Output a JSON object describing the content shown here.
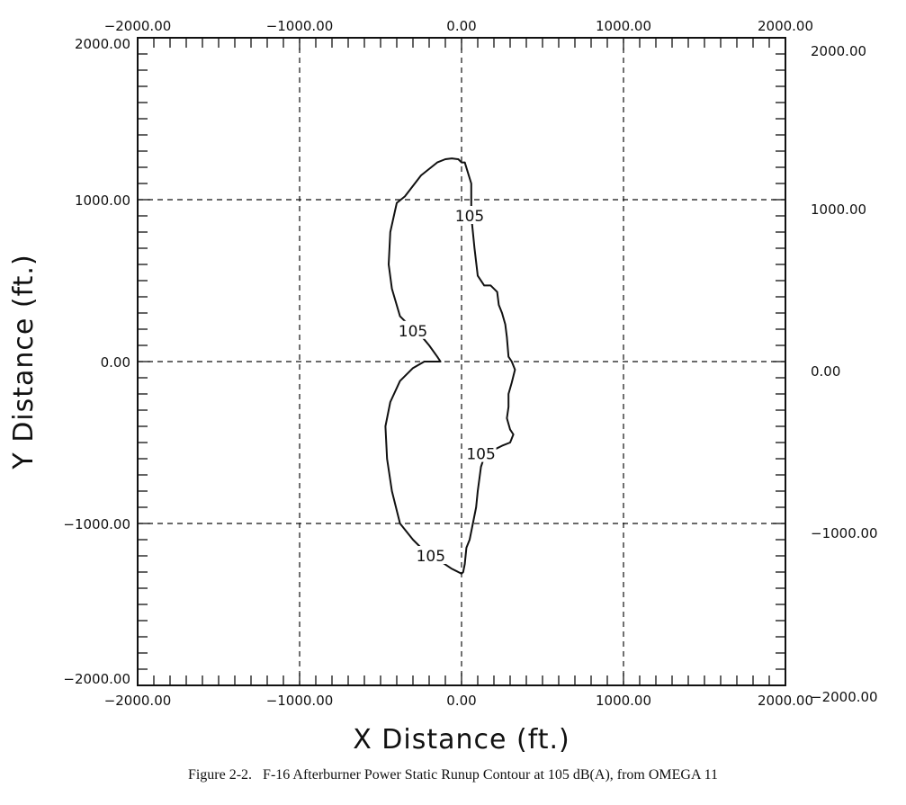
{
  "caption": "Figure 2-2.   F-16 Afterburner Power Static Runup Contour at 105 dB(A), from OMEGA 11",
  "chart_data": {
    "type": "line",
    "title": "",
    "xlabel": "X Distance (ft.)",
    "ylabel": "Y Distance (ft.)",
    "xlim": [
      -2000,
      2000
    ],
    "ylim": [
      -2000,
      2000
    ],
    "grid": true,
    "grid_style": "dashed",
    "major_ticks": [
      -2000,
      -1000,
      0,
      1000,
      2000
    ],
    "tick_labels": [
      "-2000.00",
      "-1000.00",
      "0.00",
      "1000.00",
      "2000.00"
    ],
    "minor_tick_step": 100,
    "series": [
      {
        "name": "105",
        "closed": true,
        "x": [
          20,
          60,
          60,
          80,
          100,
          140,
          180,
          220,
          230,
          250,
          270,
          280,
          285,
          290,
          310,
          330,
          310,
          290,
          290,
          280,
          300,
          320,
          300,
          250,
          210,
          150,
          120,
          100,
          90,
          70,
          50,
          30,
          20,
          10,
          0,
          -20,
          -60,
          -150,
          -250,
          -300,
          -380,
          -430,
          -460,
          -470,
          -440,
          -380,
          -300,
          -230,
          -200,
          -150,
          -130,
          -150,
          -200,
          -250,
          -300,
          -380,
          -430,
          -450,
          -440,
          -400,
          -350,
          -250,
          -150,
          -100,
          -60,
          -20,
          0
        ],
        "y": [
          1230,
          1100,
          900,
          700,
          530,
          470,
          470,
          430,
          350,
          300,
          230,
          150,
          90,
          30,
          0,
          -50,
          -130,
          -200,
          -280,
          -350,
          -420,
          -450,
          -500,
          -520,
          -540,
          -560,
          -650,
          -800,
          -900,
          -1000,
          -1100,
          -1150,
          -1250,
          -1300,
          -1310,
          -1300,
          -1280,
          -1220,
          -1150,
          -1100,
          -1000,
          -800,
          -600,
          -400,
          -250,
          -120,
          -40,
          0,
          0,
          0,
          0,
          30,
          100,
          160,
          200,
          280,
          450,
          600,
          800,
          980,
          1020,
          1150,
          1230,
          1250,
          1255,
          1250,
          1230
        ]
      }
    ],
    "contour_labels": [
      {
        "text": "105",
        "x": 50,
        "y": 900
      },
      {
        "text": "105",
        "x": -300,
        "y": 190
      },
      {
        "text": "105",
        "x": 120,
        "y": -570
      },
      {
        "text": "105",
        "x": -190,
        "y": -1200
      }
    ]
  }
}
